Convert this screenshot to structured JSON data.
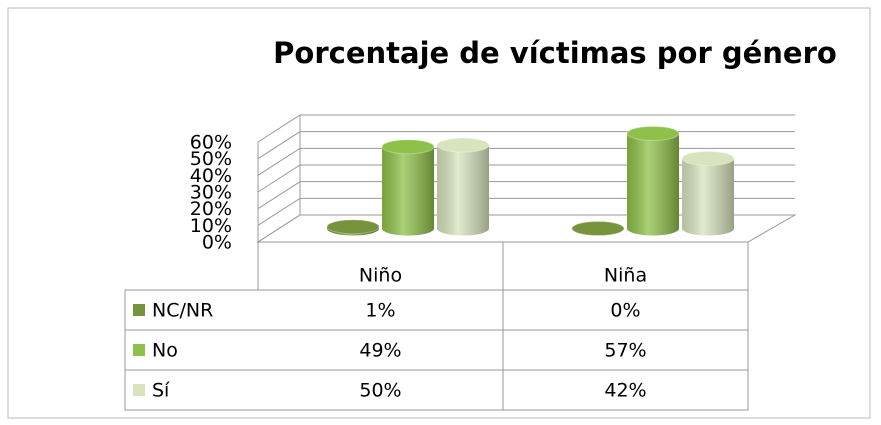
{
  "chart_data": {
    "type": "bar",
    "title": "Porcentaje de víctimas por género",
    "categories": [
      "Niño",
      "Niña"
    ],
    "series": [
      {
        "name": "NC/NR",
        "color": "#77933c",
        "values": [
          1,
          0
        ],
        "value_labels": [
          "1%",
          "0%"
        ]
      },
      {
        "name": "No",
        "color": "#8fc04a",
        "values": [
          49,
          57
        ],
        "value_labels": [
          "49%",
          "57%"
        ]
      },
      {
        "name": "Sí",
        "color": "#d7e4bd",
        "values": [
          50,
          42
        ],
        "value_labels": [
          "50%",
          "42%"
        ]
      }
    ],
    "ylim": [
      0,
      60
    ],
    "yticks": [
      {
        "value": 0,
        "label": "0%"
      },
      {
        "value": 10,
        "label": "10%"
      },
      {
        "value": 20,
        "label": "20%"
      },
      {
        "value": 30,
        "label": "30%"
      },
      {
        "value": 40,
        "label": "40%"
      },
      {
        "value": 50,
        "label": "50%"
      },
      {
        "value": 60,
        "label": "60%"
      }
    ],
    "grid": true
  }
}
